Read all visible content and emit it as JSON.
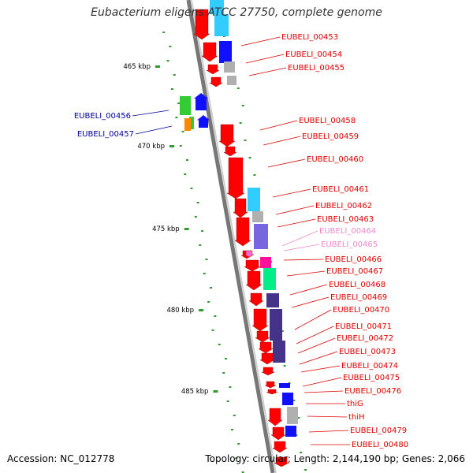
{
  "title": "Eubacterium eligens ATCC 27750, complete genome",
  "footer": {
    "accession": "Accession: NC_012778",
    "summary": "Topology: circular; Length: 2,144,190 bp; Genes: 2,066"
  },
  "colors": {
    "red": "#ff0000",
    "cyan": "#33ccff",
    "blue": "#1010ff",
    "gray": "#b0b0b0",
    "green": "#33cc33",
    "orange": "#ff8800",
    "violet": "#7766dd",
    "pink": "#ff66cc",
    "magenta": "#ff1199",
    "mint": "#00ee88",
    "navy": "#443388",
    "dotgreen": "#339933"
  },
  "ticks": [
    {
      "label": "465 kbp",
      "kb": 465
    },
    {
      "label": "470 kbp",
      "kb": 470
    },
    {
      "label": "475 kbp",
      "kb": 475
    },
    {
      "label": "480 kbp",
      "kb": 480
    },
    {
      "label": "485 kbp",
      "kb": 485
    }
  ],
  "genes": [
    {
      "label": "EUBELI_00453",
      "color": "#dd0000"
    },
    {
      "label": "EUBELI_00454",
      "color": "#dd0000"
    },
    {
      "label": "EUBELI_00455",
      "color": "#dd0000"
    },
    {
      "label": "EUBELI_00456",
      "color": "#000099"
    },
    {
      "label": "EUBELI_00457",
      "color": "#000099"
    },
    {
      "label": "EUBELI_00458",
      "color": "#dd0000"
    },
    {
      "label": "EUBELI_00459",
      "color": "#dd0000"
    },
    {
      "label": "EUBELI_00460",
      "color": "#dd0000"
    },
    {
      "label": "EUBELI_00461",
      "color": "#dd0000"
    },
    {
      "label": "EUBELI_00462",
      "color": "#dd0000"
    },
    {
      "label": "EUBELI_00463",
      "color": "#dd0000"
    },
    {
      "label": "EUBELI_00464",
      "color": "#ee88cc"
    },
    {
      "label": "EUBELI_00465",
      "color": "#ee88cc"
    },
    {
      "label": "EUBELI_00466",
      "color": "#dd0000"
    },
    {
      "label": "EUBELI_00467",
      "color": "#dd0000"
    },
    {
      "label": "EUBELI_00468",
      "color": "#dd0000"
    },
    {
      "label": "EUBELI_00469",
      "color": "#dd0000"
    },
    {
      "label": "EUBELI_00470",
      "color": "#dd0000"
    },
    {
      "label": "EUBELI_00471",
      "color": "#dd0000"
    },
    {
      "label": "EUBELI_00472",
      "color": "#dd0000"
    },
    {
      "label": "EUBELI_00473",
      "color": "#dd0000"
    },
    {
      "label": "EUBELI_00474",
      "color": "#dd0000"
    },
    {
      "label": "EUBELI_00475",
      "color": "#dd0000"
    },
    {
      "label": "EUBELI_00476",
      "color": "#dd0000"
    },
    {
      "label": "thiG",
      "color": "#dd0000"
    },
    {
      "label": "thiH",
      "color": "#dd0000"
    },
    {
      "label": "EUBELI_00479",
      "color": "#dd0000"
    },
    {
      "label": "EUBELI_00480",
      "color": "#dd0000"
    }
  ]
}
